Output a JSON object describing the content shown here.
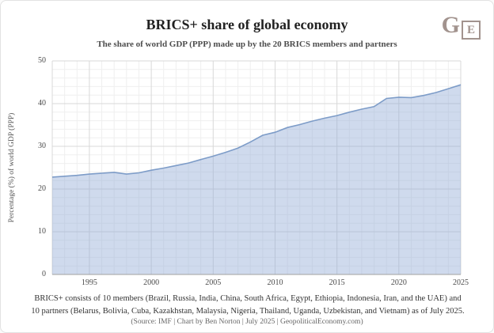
{
  "header": {
    "title": "BRICS+ share of global economy",
    "subtitle": "The share of world GDP (PPP) made up by the 20 BRICS members and partners",
    "logo": {
      "letter_g": "G",
      "letter_e": "E",
      "color": "#a2938e"
    }
  },
  "chart_data": {
    "type": "area",
    "title": "BRICS+ share of global economy",
    "subtitle": "The share of world GDP (PPP) made up by the 20 BRICS members and partners",
    "xlabel": "",
    "ylabel": "Percentage (%) of world GDP (PPP)",
    "x": [
      1992,
      1993,
      1994,
      1995,
      1996,
      1997,
      1998,
      1999,
      2000,
      2001,
      2002,
      2003,
      2004,
      2005,
      2006,
      2007,
      2008,
      2009,
      2010,
      2011,
      2012,
      2013,
      2014,
      2015,
      2016,
      2017,
      2018,
      2019,
      2020,
      2021,
      2022,
      2023,
      2024,
      2025
    ],
    "series": [
      {
        "name": "BRICS+ share of world GDP (PPP), %",
        "values": [
          22.8,
          23.0,
          23.2,
          23.5,
          23.7,
          23.9,
          23.5,
          23.8,
          24.4,
          24.9,
          25.5,
          26.1,
          26.9,
          27.7,
          28.6,
          29.6,
          31.0,
          32.6,
          33.3,
          34.4,
          35.1,
          35.9,
          36.6,
          37.2,
          38.0,
          38.7,
          39.3,
          41.2,
          41.5,
          41.4,
          41.9,
          42.6,
          43.5,
          44.4
        ]
      }
    ],
    "xlim": [
      1992,
      2025
    ],
    "ylim": [
      0,
      50
    ],
    "x_ticks": [
      1995,
      2000,
      2005,
      2010,
      2015,
      2020,
      2025
    ],
    "y_ticks": [
      0,
      10,
      20,
      30,
      40,
      50
    ],
    "grid": "major and minor, on",
    "legend": "none",
    "minor_x_step": 1,
    "minor_y_step": 2,
    "colors": {
      "line": "#7d9cc8",
      "area_fill": "#94add7",
      "area_fill_opacity": 0.45,
      "grid_major": "#d8d8d8",
      "grid_minor": "#efefef",
      "baseline": "#a0a0a0",
      "tick_text": "#494949"
    }
  },
  "footer": {
    "note_line1": "BRICS+ consists of 10 members (Brazil, Russia, India, China, South Africa, Egypt, Ethiopia, Indonesia, Iran, and the UAE) and",
    "note_line2": "10 partners (Belarus, Bolivia, Cuba, Kazakhstan, Malaysia, Nigeria, Thailand, Uganda, Uzbekistan, and Vietnam) as of July 2025.",
    "source": "(Source: IMF | Chart by Ben Norton | July 2025 | GeopoliticalEconomy.com)"
  }
}
